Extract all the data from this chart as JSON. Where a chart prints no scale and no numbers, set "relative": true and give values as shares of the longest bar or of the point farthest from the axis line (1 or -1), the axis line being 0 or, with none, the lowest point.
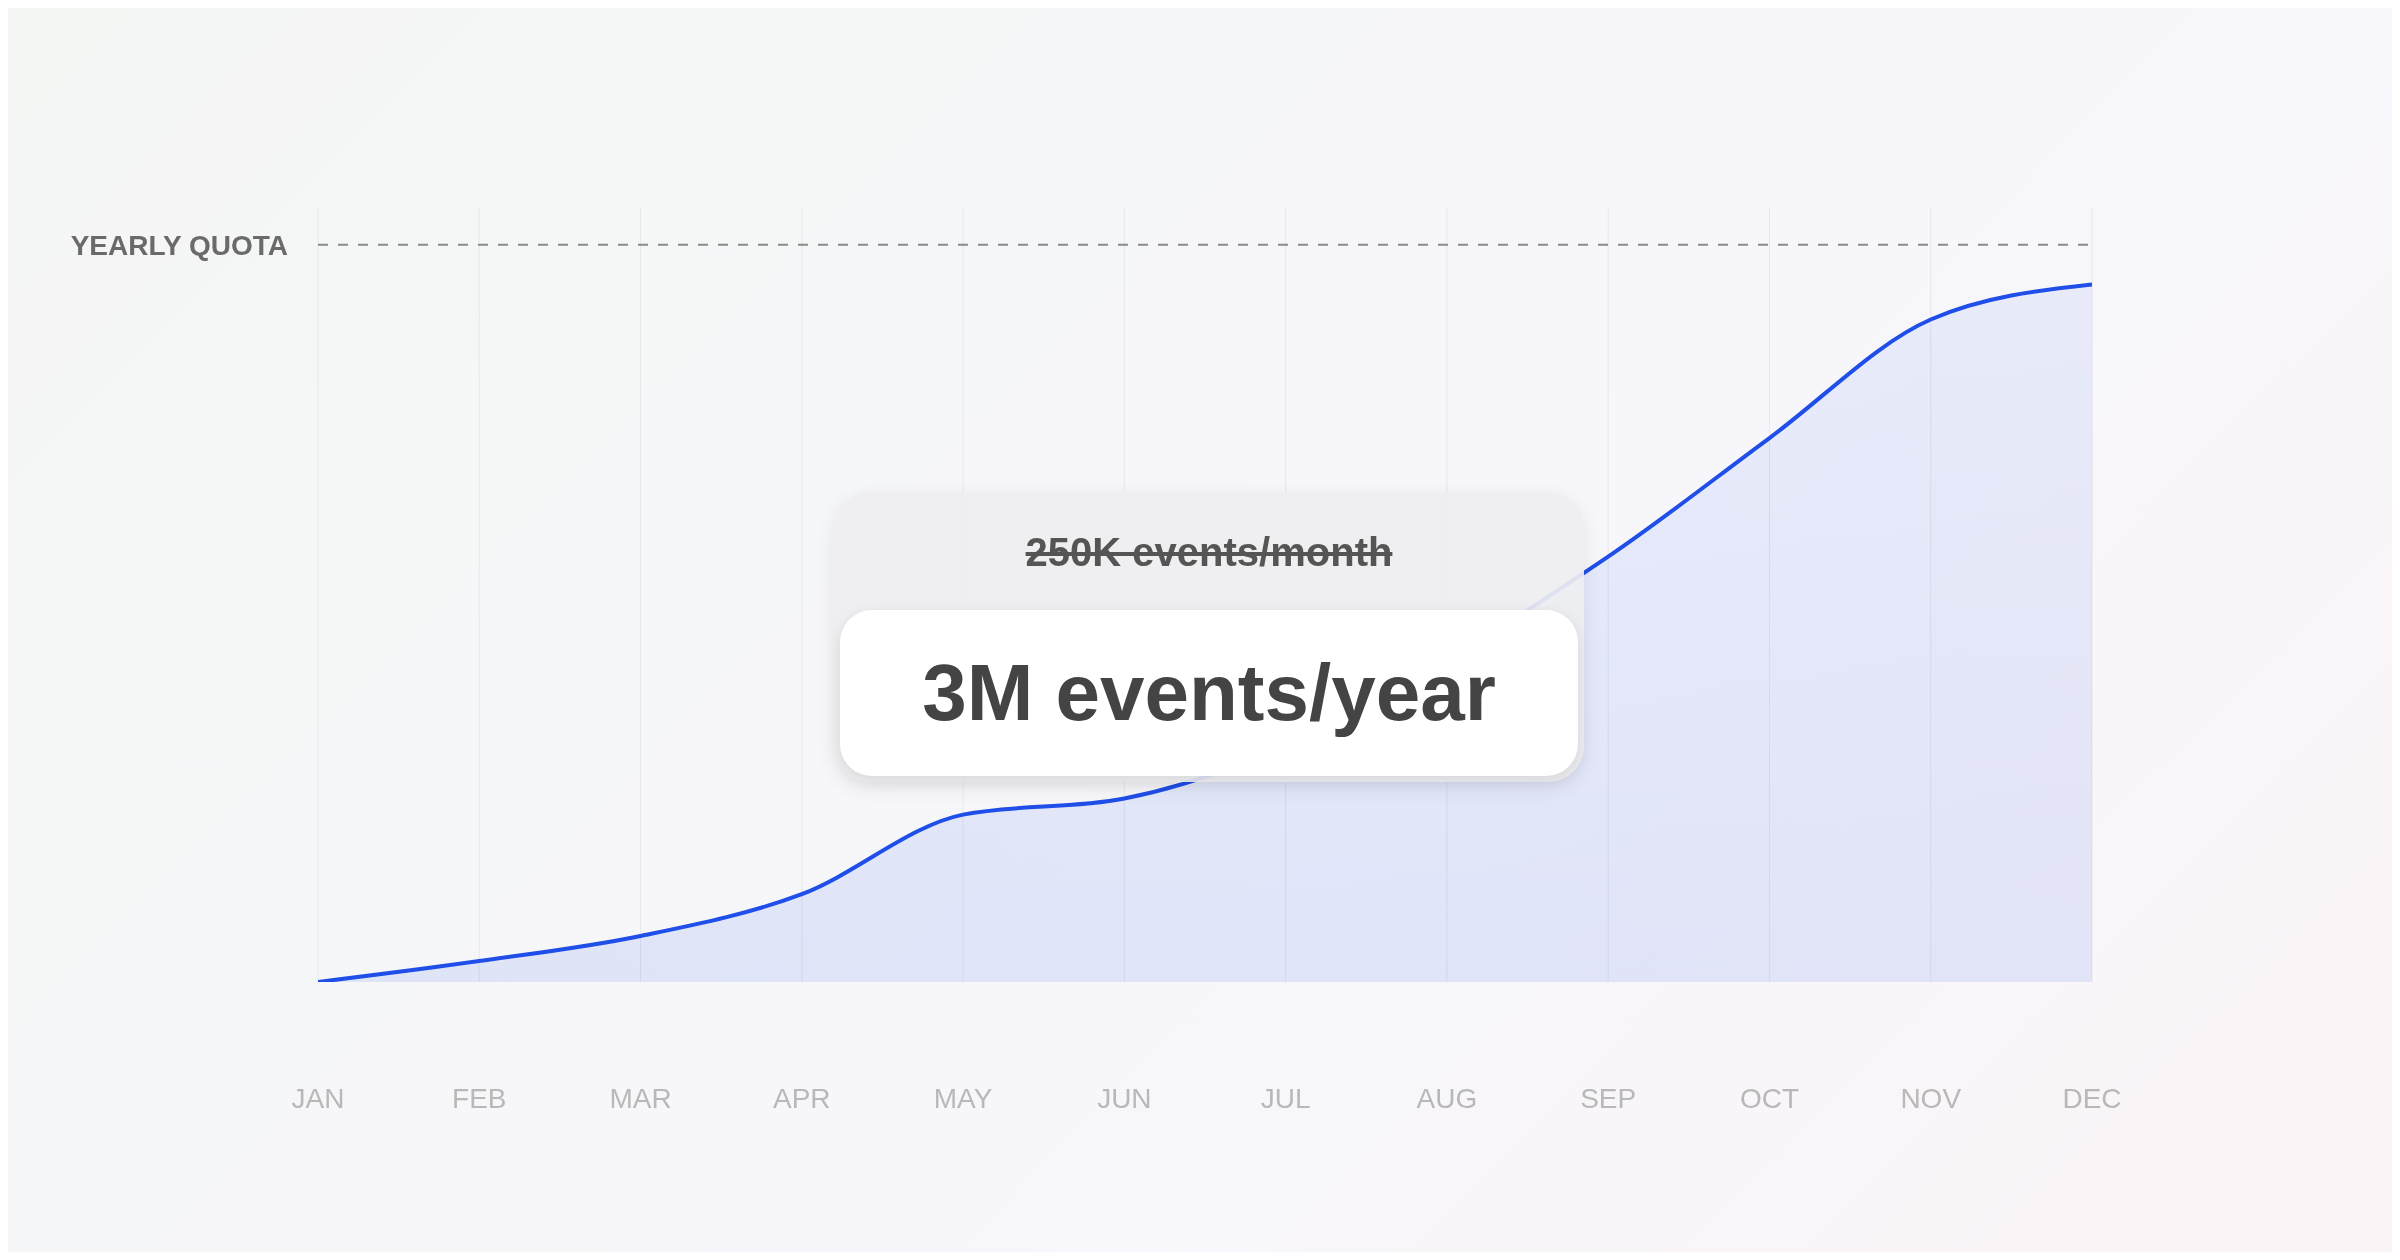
{
  "chart_data": {
    "type": "area",
    "relative": true,
    "categories": [
      "JAN",
      "FEB",
      "MAR",
      "APR",
      "MAY",
      "JUN",
      "JUL",
      "AUG",
      "SEP",
      "OCT",
      "NOV",
      "DEC"
    ],
    "series": [
      {
        "color": "#1f4ee8",
        "values": [
          0,
          0.03,
          0.066,
          0.126,
          0.24,
          0.263,
          null,
          null,
          0.61,
          0.78,
          0.95,
          1
        ]
      }
    ],
    "ref_lines": [
      {
        "axis": "y",
        "value": 1.057,
        "label": "YEARLY QUOTA",
        "color": "#8a8a8a",
        "line_style": "dashed"
      }
    ],
    "annotations": [
      "250K events/month",
      "3M events/year"
    ],
    "grid": "x",
    "marker": "none",
    "line_style": "solid"
  }
}
